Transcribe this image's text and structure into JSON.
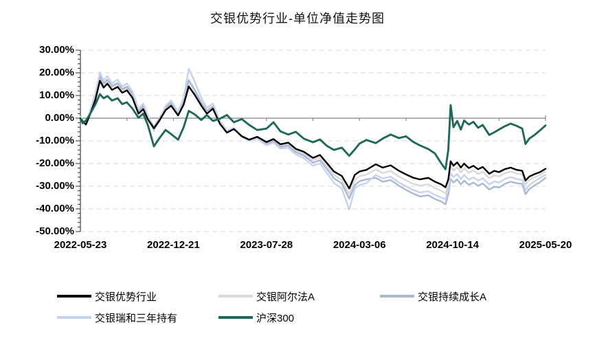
{
  "title": "交银优势行业-单位净值走势图",
  "chart_data": {
    "type": "line",
    "title": "交银优势行业-单位净值走势图",
    "ylabel": "",
    "xlabel": "",
    "unit": "%",
    "ylim": [
      -50,
      30
    ],
    "grid": "horizontal-dashed",
    "legend_position": "bottom-left-two-rows",
    "y_tick_labels": [
      "30.00%",
      "20.00%",
      "10.00%",
      "0.00%",
      "-10.00%",
      "-20.00%",
      "-30.00%",
      "-40.00%",
      "-50.00%"
    ],
    "x_tick_labels": [
      "2022-05-23",
      "2022-12-21",
      "2023-07-28",
      "2024-03-06",
      "2024-10-14",
      "2025-05-20"
    ],
    "x": [
      0,
      0.005,
      0.012,
      0.02,
      0.032,
      0.042,
      0.05,
      0.058,
      0.068,
      0.08,
      0.09,
      0.1,
      0.112,
      0.125,
      0.135,
      0.145,
      0.158,
      0.17,
      0.183,
      0.195,
      0.21,
      0.222,
      0.233,
      0.245,
      0.26,
      0.272,
      0.285,
      0.3,
      0.315,
      0.33,
      0.347,
      0.363,
      0.38,
      0.4,
      0.415,
      0.43,
      0.447,
      0.463,
      0.48,
      0.5,
      0.515,
      0.53,
      0.545,
      0.562,
      0.578,
      0.59,
      0.6,
      0.615,
      0.635,
      0.65,
      0.667,
      0.685,
      0.7,
      0.715,
      0.73,
      0.748,
      0.762,
      0.776,
      0.785,
      0.791,
      0.796,
      0.802,
      0.81,
      0.818,
      0.825,
      0.835,
      0.845,
      0.855,
      0.865,
      0.879,
      0.89,
      0.9,
      0.912,
      0.925,
      0.938,
      0.95,
      0.957,
      0.965,
      0.975,
      0.988,
      1.0
    ],
    "series": [
      {
        "name": "交银优势行业",
        "color": "#000000",
        "values": [
          0,
          -1.5,
          -2.8,
          1.2,
          8,
          16.5,
          13.5,
          15.2,
          12.5,
          13.8,
          11.2,
          12.3,
          9.0,
          2.0,
          4.0,
          -0.5,
          -4.5,
          -1.0,
          3.5,
          5.5,
          1.2,
          6.0,
          14.0,
          10.5,
          5.5,
          2.0,
          4.2,
          -2.5,
          -6.4,
          -4.8,
          -8.0,
          -9.5,
          -8.2,
          -10.5,
          -9.2,
          -11.5,
          -10.8,
          -13.5,
          -14.8,
          -17.5,
          -16.2,
          -19.8,
          -23.5,
          -25.5,
          -31.0,
          -25.0,
          -23.5,
          -22.8,
          -20.3,
          -21.8,
          -20.8,
          -23.2,
          -24.8,
          -26.2,
          -27.0,
          -26.3,
          -28.0,
          -29.2,
          -30.5,
          -27.0,
          -19.0,
          -21.0,
          -19.5,
          -21.8,
          -20.0,
          -22.0,
          -21.0,
          -22.5,
          -21.5,
          -24.5,
          -23.2,
          -23.8,
          -22.5,
          -21.8,
          -22.8,
          -23.2,
          -27.5,
          -25.8,
          -24.8,
          -23.8,
          -22.3
        ]
      },
      {
        "name": "交银阿尔法A",
        "color": "#d9d9d9",
        "values": [
          0.2,
          -1.2,
          -2.5,
          1.8,
          9.2,
          17.8,
          14.6,
          16.3,
          13.6,
          14.9,
          12.2,
          13.3,
          10.0,
          2.8,
          4.8,
          0.2,
          -4.0,
          -0.4,
          4.2,
          6.3,
          1.8,
          7.0,
          16.0,
          12.0,
          6.5,
          2.8,
          4.8,
          -2.0,
          -6.0,
          -4.5,
          -7.8,
          -9.4,
          -8.3,
          -10.8,
          -9.6,
          -12.0,
          -11.4,
          -14.2,
          -15.6,
          -18.5,
          -17.3,
          -21.0,
          -25.0,
          -27.2,
          -33.5,
          -27.2,
          -25.6,
          -24.9,
          -22.6,
          -24.2,
          -23.3,
          -25.8,
          -27.4,
          -28.9,
          -29.8,
          -29.1,
          -30.8,
          -32.0,
          -33.2,
          -29.5,
          -21.2,
          -23.1,
          -21.6,
          -23.9,
          -22.1,
          -24.1,
          -23.1,
          -24.6,
          -23.6,
          -26.5,
          -25.2,
          -25.7,
          -24.3,
          -23.5,
          -24.4,
          -24.8,
          -29.2,
          -27.3,
          -26.2,
          -25.1,
          -23.5
        ]
      },
      {
        "name": "交银持续成长A",
        "color": "#a9bacf",
        "values": [
          0.3,
          -1.0,
          -2.3,
          2.2,
          10.0,
          18.8,
          15.4,
          17.0,
          14.2,
          15.5,
          12.8,
          13.9,
          10.6,
          3.2,
          5.4,
          0.6,
          -3.8,
          0.0,
          4.6,
          6.8,
          2.2,
          7.6,
          16.8,
          12.8,
          7.0,
          3.2,
          5.2,
          -1.8,
          -5.8,
          -4.4,
          -7.9,
          -9.6,
          -8.6,
          -11.2,
          -10.1,
          -12.6,
          -12.1,
          -15.0,
          -16.5,
          -19.6,
          -18.5,
          -22.4,
          -26.5,
          -28.8,
          -35.5,
          -29.5,
          -27.8,
          -27.0,
          -26.3,
          -28.0,
          -27.3,
          -29.8,
          -31.6,
          -33.2,
          -34.5,
          -34.0,
          -35.6,
          -36.8,
          -38.0,
          -33.5,
          -26.8,
          -28.4,
          -27.0,
          -29.2,
          -27.5,
          -29.4,
          -28.4,
          -29.8,
          -28.8,
          -31.5,
          -30.2,
          -30.6,
          -29.0,
          -28.0,
          -28.7,
          -29.0,
          -33.5,
          -31.3,
          -29.8,
          -28.2,
          -26.3
        ]
      },
      {
        "name": "交银瑞和三年持有",
        "color": "#c6d3ee",
        "values": [
          0.5,
          -0.8,
          -2.0,
          2.6,
          11.0,
          20.2,
          16.6,
          18.6,
          15.4,
          17.0,
          14.0,
          15.3,
          11.8,
          4.0,
          6.5,
          1.2,
          -5.5,
          -1.2,
          5.4,
          7.8,
          2.8,
          9.0,
          21.8,
          16.5,
          9.0,
          4.5,
          6.5,
          -1.2,
          -5.5,
          -4.2,
          -8.2,
          -10.0,
          -9.0,
          -12.0,
          -10.8,
          -13.4,
          -13.0,
          -16.0,
          -17.6,
          -21.0,
          -20.0,
          -24.2,
          -28.5,
          -31.0,
          -40.3,
          -31.0,
          -29.5,
          -28.6,
          -25.0,
          -26.6,
          -25.8,
          -28.4,
          -30.0,
          -31.6,
          -32.8,
          -32.2,
          -33.8,
          -35.0,
          -35.8,
          -31.0,
          -24.2,
          -26.0,
          -24.6,
          -26.9,
          -25.1,
          -27.1,
          -26.1,
          -27.5,
          -26.5,
          -29.2,
          -27.9,
          -28.4,
          -26.9,
          -26.0,
          -26.8,
          -27.2,
          -31.8,
          -29.5,
          -28.0,
          -26.4,
          -25.0
        ]
      },
      {
        "name": "沪深300",
        "color": "#206858",
        "values": [
          -0.3,
          -2.2,
          -1.0,
          1.5,
          6.0,
          10.6,
          8.8,
          9.8,
          7.8,
          8.8,
          6.2,
          7.0,
          4.2,
          0.2,
          2.0,
          -3.0,
          -12.4,
          -8.8,
          -5.2,
          -7.0,
          -9.5,
          -4.0,
          3.2,
          1.8,
          -0.8,
          1.4,
          -1.2,
          -0.2,
          1.4,
          -1.8,
          -0.4,
          -3.0,
          -5.2,
          -4.6,
          -1.8,
          -5.8,
          -7.2,
          -6.0,
          -9.0,
          -10.6,
          -9.4,
          -12.2,
          -14.0,
          -13.0,
          -16.6,
          -13.8,
          -11.2,
          -9.6,
          -11.0,
          -9.0,
          -7.2,
          -8.8,
          -8.0,
          -10.4,
          -12.0,
          -13.6,
          -15.5,
          -20.0,
          -22.5,
          -14.0,
          5.8,
          -4.0,
          -1.2,
          -5.0,
          -1.0,
          -2.8,
          -1.6,
          -4.2,
          -3.0,
          -7.4,
          -6.2,
          -5.0,
          -3.6,
          -2.4,
          -3.4,
          -4.6,
          -11.4,
          -9.0,
          -7.6,
          -5.4,
          -3.2
        ]
      }
    ],
    "style": {
      "gridline_color": "#d9d9d9",
      "zero_axis_color": "#808080",
      "y_axis_color": "#404040",
      "background": "#ffffff"
    }
  }
}
